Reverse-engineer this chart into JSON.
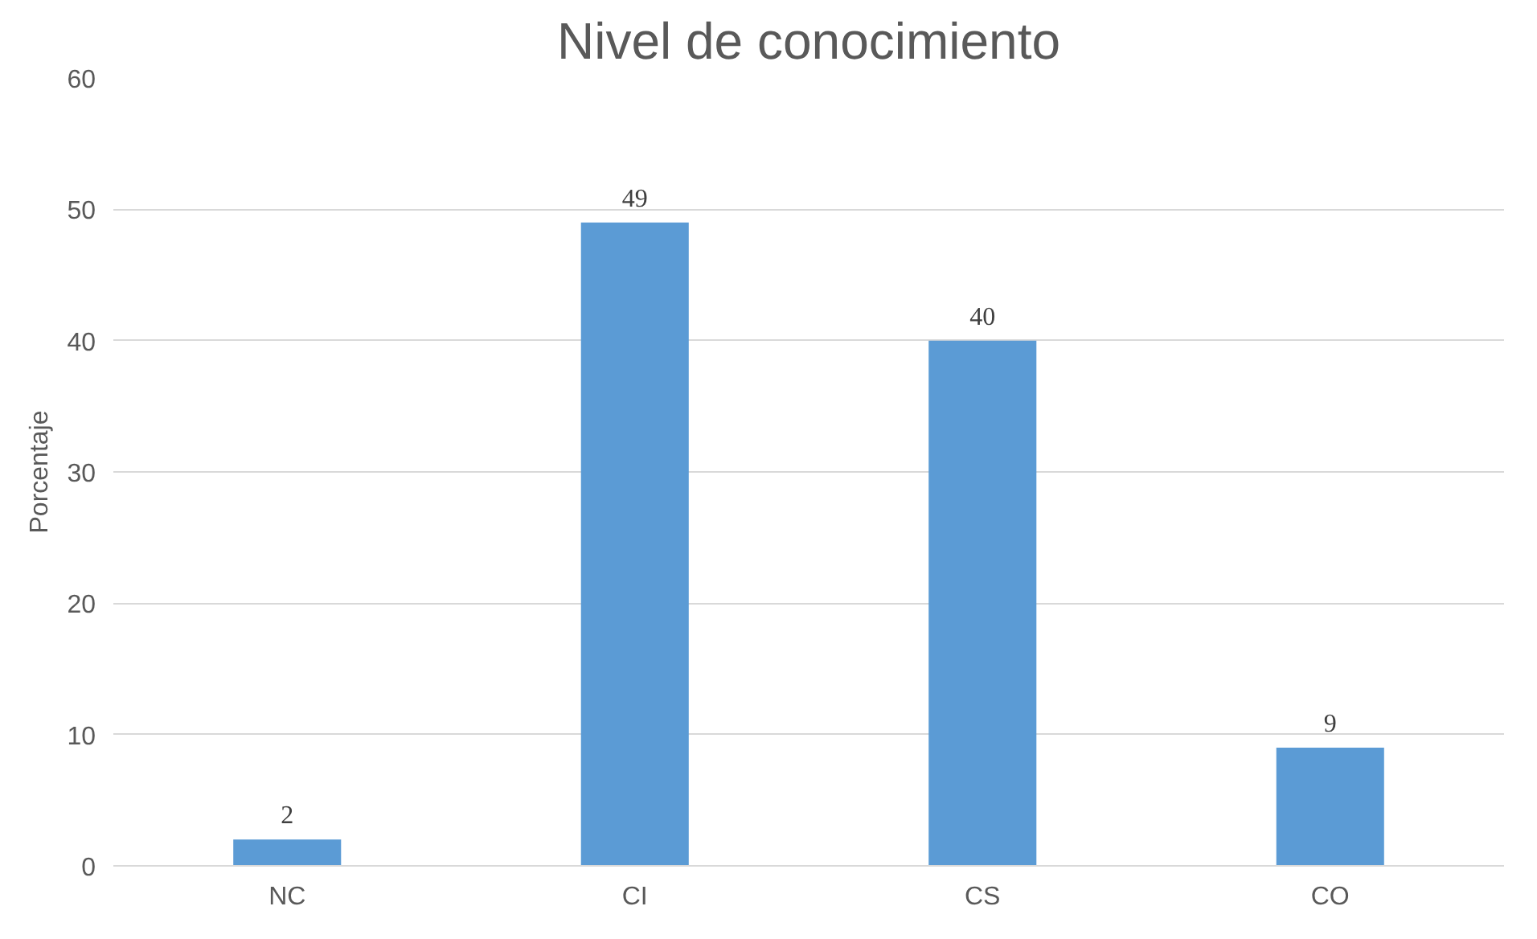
{
  "chart_data": {
    "type": "bar",
    "title": "Nivel de conocimiento",
    "ylabel": "Porcentaje",
    "categories": [
      "NC",
      "CI",
      "CS",
      "CO"
    ],
    "values": [
      2,
      49,
      40,
      9
    ],
    "color": "#5b9bd5",
    "ylim": [
      0,
      60
    ],
    "yticks": [
      0,
      10,
      20,
      30,
      40,
      50,
      60
    ],
    "grid": "y",
    "data_labels": true
  }
}
